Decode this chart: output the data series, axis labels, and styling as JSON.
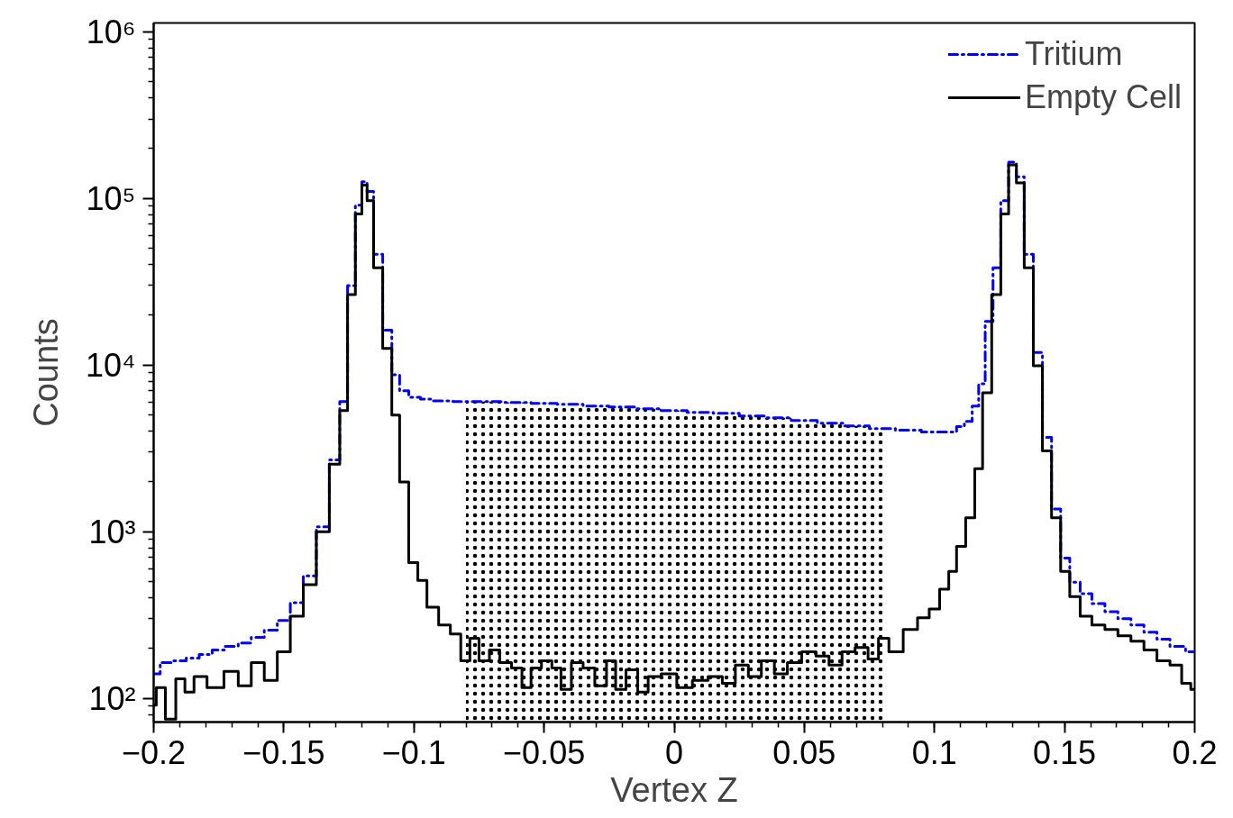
{
  "chart_data": {
    "type": "step",
    "xlabel": "Vertex Z",
    "ylabel": "Counts",
    "log": "y",
    "grid": false,
    "legend": "top right",
    "marker": "none",
    "xlim": [
      -0.2,
      0.2
    ],
    "ylim": [
      72,
      1130000
    ],
    "xticks": [
      {
        "value": -0.2,
        "label": "−0.2"
      },
      {
        "value": -0.15,
        "label": "−0.15"
      },
      {
        "value": -0.1,
        "label": "−0.1"
      },
      {
        "value": -0.05,
        "label": "−0.05"
      },
      0,
      0.05,
      0.1,
      0.15,
      0.2
    ],
    "yticks": [
      {
        "value": 100,
        "label": "10²"
      },
      {
        "value": 1000,
        "label": "10³"
      },
      {
        "value": 10000,
        "label": "10⁴"
      },
      {
        "value": 100000,
        "label": "10⁵"
      },
      {
        "value": 1000000,
        "label": "10⁶"
      }
    ],
    "bands": [
      {
        "axis": "x",
        "from": -0.08,
        "to": 0.08,
        "color": "#000000"
      }
    ],
    "series": [
      {
        "name": "Tritium",
        "color": "#0000ff",
        "line_style": "dashed",
        "x": [
          -0.2,
          -0.195,
          -0.19,
          -0.185,
          -0.18,
          -0.175,
          -0.17,
          -0.165,
          -0.16,
          -0.155,
          -0.15,
          -0.145,
          -0.14,
          -0.135,
          -0.13,
          -0.127,
          -0.124,
          -0.121,
          -0.119,
          -0.117,
          -0.114,
          -0.11,
          -0.107,
          -0.104,
          -0.1,
          -0.095,
          -0.09,
          -0.08,
          -0.07,
          -0.06,
          -0.05,
          -0.04,
          -0.03,
          -0.02,
          -0.01,
          0.0,
          0.01,
          0.02,
          0.03,
          0.04,
          0.05,
          0.06,
          0.07,
          0.08,
          0.09,
          0.1,
          0.107,
          0.11,
          0.113,
          0.116,
          0.118,
          0.121,
          0.124,
          0.127,
          0.13,
          0.133,
          0.136,
          0.14,
          0.143,
          0.147,
          0.15,
          0.154,
          0.158,
          0.163,
          0.168,
          0.173,
          0.178,
          0.183,
          0.188,
          0.193,
          0.2
        ],
        "values": [
          140,
          164,
          168,
          174,
          183,
          195,
          205,
          215,
          232,
          256,
          293,
          375,
          543,
          1070,
          2700,
          6030,
          30000,
          91200,
          126000,
          110000,
          46200,
          16200,
          8730,
          7000,
          6410,
          6250,
          6100,
          6030,
          6030,
          5960,
          5880,
          5810,
          5670,
          5600,
          5460,
          5330,
          5200,
          5130,
          4940,
          4830,
          4650,
          4480,
          4320,
          4160,
          4060,
          3960,
          3960,
          4270,
          4590,
          5670,
          7710,
          18300,
          38400,
          97000,
          165000,
          135000,
          46200,
          11900,
          3680,
          1370,
          695,
          498,
          424,
          370,
          331,
          300,
          275,
          249,
          226,
          205,
          190
        ]
      },
      {
        "name": "Empty Cell",
        "color": "#000000",
        "line_style": "solid",
        "x": [
          -0.2,
          -0.198,
          -0.193,
          -0.19,
          -0.186,
          -0.183,
          -0.176,
          -0.17,
          -0.165,
          -0.16,
          -0.155,
          -0.15,
          -0.145,
          -0.14,
          -0.135,
          -0.13,
          -0.127,
          -0.124,
          -0.121,
          -0.119,
          -0.117,
          -0.114,
          -0.11,
          -0.107,
          -0.104,
          -0.1,
          -0.097,
          -0.093,
          -0.088,
          -0.084,
          -0.08,
          -0.077,
          -0.073,
          -0.069,
          -0.065,
          -0.06,
          -0.057,
          -0.053,
          -0.049,
          -0.045,
          -0.042,
          -0.037,
          -0.033,
          -0.028,
          -0.024,
          -0.021,
          -0.016,
          -0.012,
          -0.008,
          -0.002,
          0.004,
          0.01,
          0.016,
          0.021,
          0.026,
          0.031,
          0.036,
          0.041,
          0.046,
          0.052,
          0.057,
          0.062,
          0.067,
          0.072,
          0.077,
          0.08,
          0.085,
          0.091,
          0.096,
          0.1,
          0.104,
          0.107,
          0.11,
          0.114,
          0.117,
          0.12,
          0.124,
          0.127,
          0.13,
          0.133,
          0.136,
          0.14,
          0.143,
          0.147,
          0.15,
          0.154,
          0.158,
          0.163,
          0.168,
          0.173,
          0.178,
          0.183,
          0.188,
          0.193,
          0.197,
          0.2
        ],
        "values": [
          91,
          116,
          75,
          131,
          109,
          135,
          116,
          145,
          119,
          164,
          128,
          190,
          311,
          480,
          1000,
          2540,
          5330,
          26500,
          80600,
          120000,
          97000,
          38400,
          12600,
          5010,
          1990,
          653,
          510,
          352,
          275,
          243,
          168,
          229,
          168,
          195,
          164,
          152,
          116,
          152,
          168,
          152,
          113,
          164,
          152,
          119,
          168,
          113,
          148,
          109,
          135,
          140,
          116,
          128,
          135,
          123,
          158,
          135,
          168,
          140,
          164,
          190,
          179,
          158,
          190,
          202,
          172,
          229,
          190,
          259,
          304,
          344,
          451,
          577,
          816,
          1210,
          2390,
          6820,
          26500,
          80600,
          159000,
          124000,
          38400,
          9890,
          3050,
          1210,
          577,
          408,
          311,
          275,
          259,
          237,
          220,
          195,
          168,
          158,
          123,
          113
        ]
      }
    ]
  }
}
